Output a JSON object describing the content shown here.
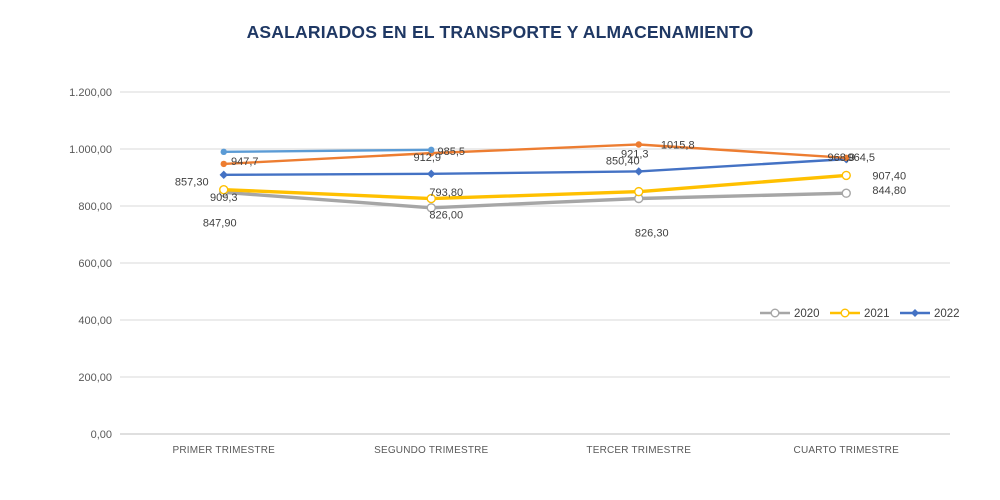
{
  "title": "ASALARIADOS EN EL TRANSPORTE Y ALMACENAMIENTO",
  "chart_data": {
    "type": "line",
    "title": "ASALARIADOS EN EL TRANSPORTE Y ALMACENAMIENTO",
    "categories": [
      "PRIMER TRIMESTRE",
      "SEGUNDO TRIMESTRE",
      "TERCER TRIMESTRE",
      "CUARTO TRIMESTRE"
    ],
    "y_axis": {
      "min": 0,
      "max": 1200,
      "step": 200,
      "grid": true,
      "tick_labels": [
        "0,00",
        "200,00",
        "400,00",
        "600,00",
        "800,00",
        "1.000,00",
        "1.200,00"
      ]
    },
    "series": [
      {
        "name": "2020",
        "color": "#a6a6a6",
        "marker": "circle-open",
        "in_legend": true,
        "values": [
          847.9,
          793.8,
          826.3,
          844.8
        ],
        "labels": [
          "847,90",
          "793,80",
          "826,30",
          "844,80"
        ]
      },
      {
        "name": "2021",
        "color": "#ffc000",
        "marker": "circle-open",
        "in_legend": true,
        "values": [
          857.3,
          826.0,
          850.4,
          907.4
        ],
        "labels": [
          "857,30",
          "826,00",
          "850,40",
          "907,40"
        ]
      },
      {
        "name": "2022",
        "color": "#4472c4",
        "marker": "diamond",
        "in_legend": true,
        "values": [
          909.3,
          912.9,
          921.3,
          964.5
        ],
        "labels": [
          "909,3",
          "912,9",
          "921,3",
          "964,5"
        ]
      },
      {
        "name": "",
        "color": "#ed7d31",
        "marker": "dot",
        "in_legend": false,
        "values": [
          947.7,
          985.5,
          1015.8,
          968.9
        ],
        "labels": [
          "947,7",
          "985,5",
          "1015,8",
          "968,9"
        ]
      },
      {
        "name": "",
        "color": "#5b9bd5",
        "marker": "dot",
        "in_legend": false,
        "values": [
          990,
          997,
          null,
          null
        ],
        "labels": [
          "",
          "",
          "",
          ""
        ]
      }
    ],
    "legend": {
      "position": "middle-right",
      "entries": [
        "2020",
        "2021",
        "2022"
      ]
    },
    "axis_text_color": "#595959",
    "label_text_color": "#404040",
    "grid_color": "#d9d9d9",
    "axis_line_color": "#bfbfbf"
  }
}
